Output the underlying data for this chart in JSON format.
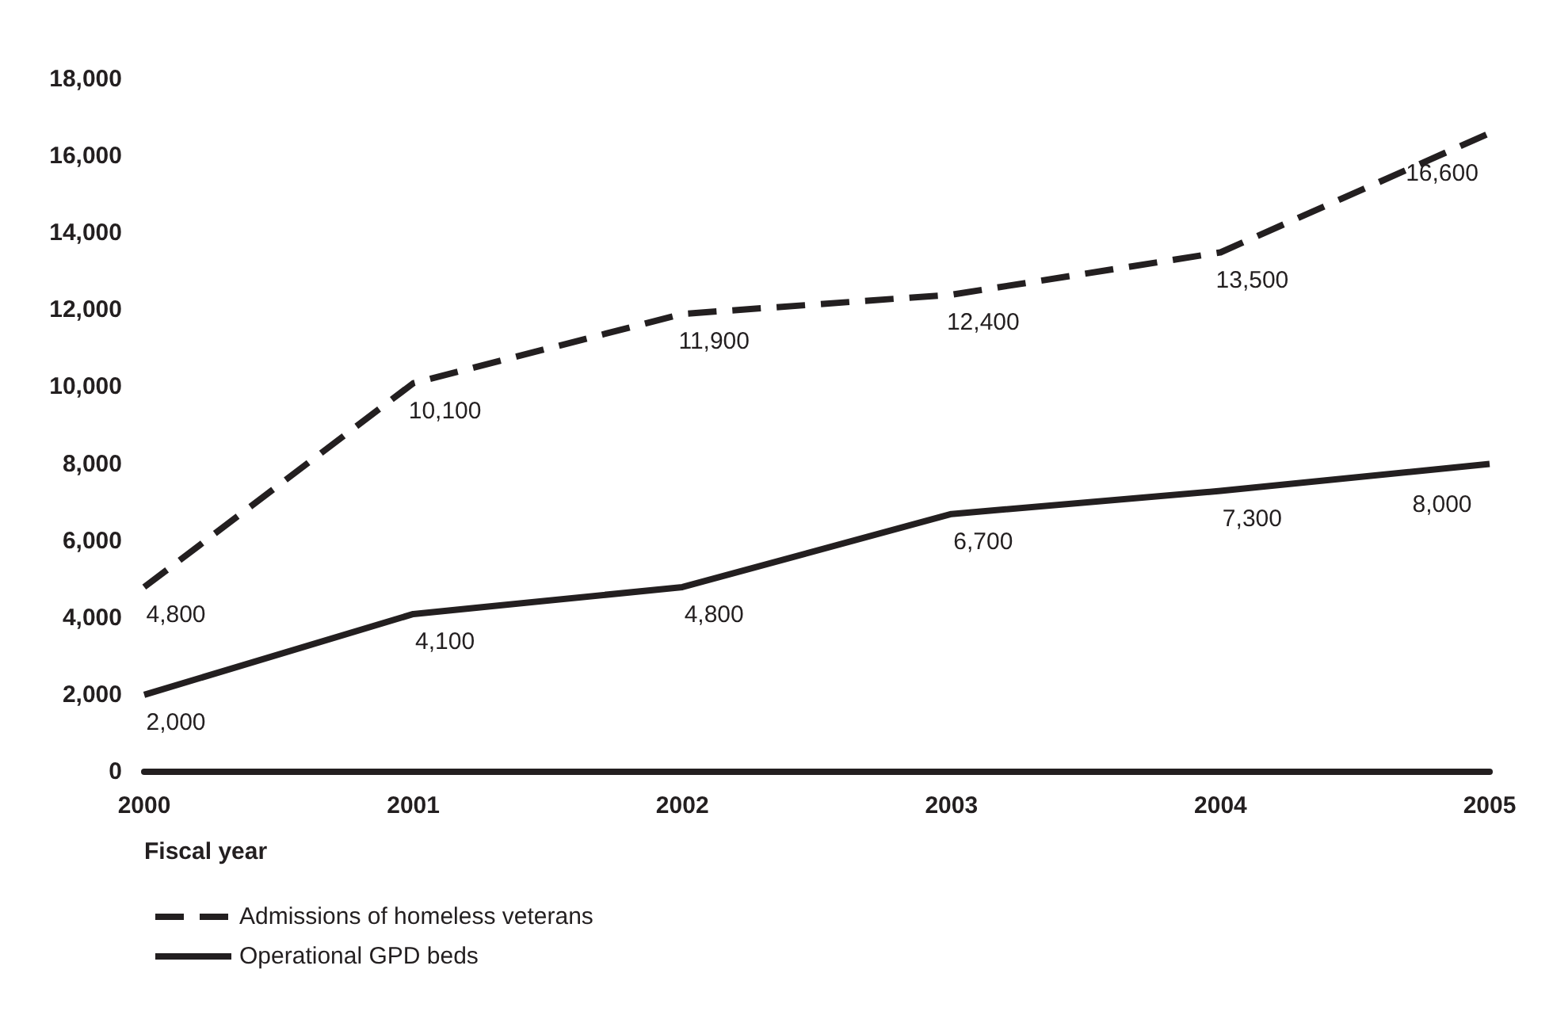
{
  "chart_data": {
    "type": "line",
    "xlabel": "Fiscal year",
    "x": [
      2000,
      2001,
      2002,
      2003,
      2004,
      2005
    ],
    "xlim": [
      2000,
      2005
    ],
    "xticks": [
      2000,
      2001,
      2002,
      2003,
      2004,
      2005
    ],
    "ylim": [
      0,
      18000
    ],
    "yticks": [
      0,
      {
        "value": 2000,
        "label": "2,000"
      },
      {
        "value": 4000,
        "label": "4,000"
      },
      {
        "value": 6000,
        "label": "6,000"
      },
      {
        "value": 8000,
        "label": "8,000"
      },
      {
        "value": 10000,
        "label": "10,000"
      },
      {
        "value": 12000,
        "label": "12,000"
      },
      {
        "value": 14000,
        "label": "14,000"
      },
      {
        "value": 16000,
        "label": "16,000"
      },
      {
        "value": 18000,
        "label": "18,000"
      }
    ],
    "series": [
      {
        "name": "Admissions of homeless veterans",
        "color": "#231f20",
        "line_style": "dashed",
        "values": [
          4800,
          10100,
          11900,
          12400,
          13500,
          16600
        ],
        "value_labels": [
          "4,800",
          "10,100",
          "11,900",
          "12,400",
          "13,500",
          "16,600"
        ]
      },
      {
        "name": "Operational GPD beds",
        "color": "#231f20",
        "line_style": "solid",
        "values": [
          2000,
          4100,
          4800,
          6700,
          7300,
          8000
        ],
        "value_labels": [
          "2,000",
          "4,100",
          "4,800",
          "6,700",
          "7,300",
          "8,000"
        ]
      }
    ],
    "marker": "none",
    "grid": false,
    "legend": "bottom left"
  }
}
